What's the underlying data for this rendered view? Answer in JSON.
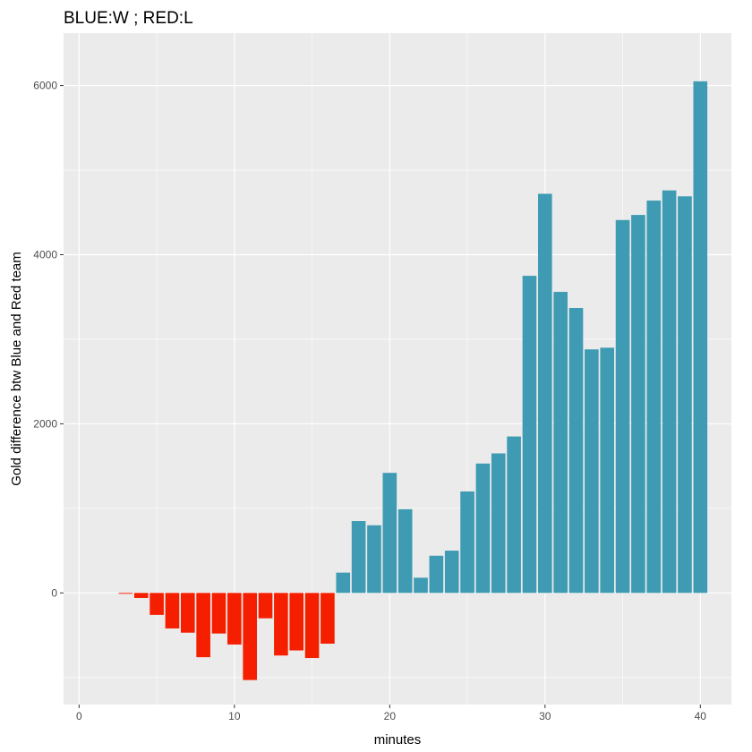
{
  "chart_data": {
    "type": "bar",
    "title": "BLUE:W ; RED:L",
    "xlabel": "minutes",
    "ylabel": "Gold difference btw Blue and Red team",
    "xlim": [
      -1,
      42
    ],
    "ylim": [
      -1320,
      6620
    ],
    "xticks": [
      0,
      10,
      20,
      30,
      40
    ],
    "yticks": [
      0,
      2000,
      4000,
      6000
    ],
    "xtick_labels": [
      "0",
      "10",
      "20",
      "30",
      "40"
    ],
    "ytick_labels": [
      "0",
      "2000",
      "4000",
      "6000"
    ],
    "grid": true,
    "colors": {
      "panel": "#ebebeb",
      "grid_major": "#ffffff",
      "positive": "#3e9bb3",
      "negative": "#f51f00",
      "tick_text": "#4d4d4d"
    },
    "x": [
      3,
      4,
      5,
      6,
      7,
      8,
      9,
      10,
      11,
      12,
      13,
      14,
      15,
      16,
      17,
      18,
      19,
      20,
      21,
      22,
      23,
      24,
      25,
      26,
      27,
      28,
      29,
      30,
      31,
      32,
      33,
      34,
      35,
      36,
      37,
      38,
      39,
      40
    ],
    "values": [
      -10,
      -60,
      -260,
      -420,
      -470,
      -760,
      -480,
      -610,
      -1030,
      -300,
      -740,
      -680,
      -770,
      -600,
      240,
      850,
      800,
      1420,
      990,
      180,
      440,
      500,
      1200,
      1530,
      1650,
      1850,
      3750,
      4720,
      3560,
      3370,
      2880,
      2900,
      4410,
      4470,
      4640,
      4760,
      4690,
      6050
    ]
  }
}
